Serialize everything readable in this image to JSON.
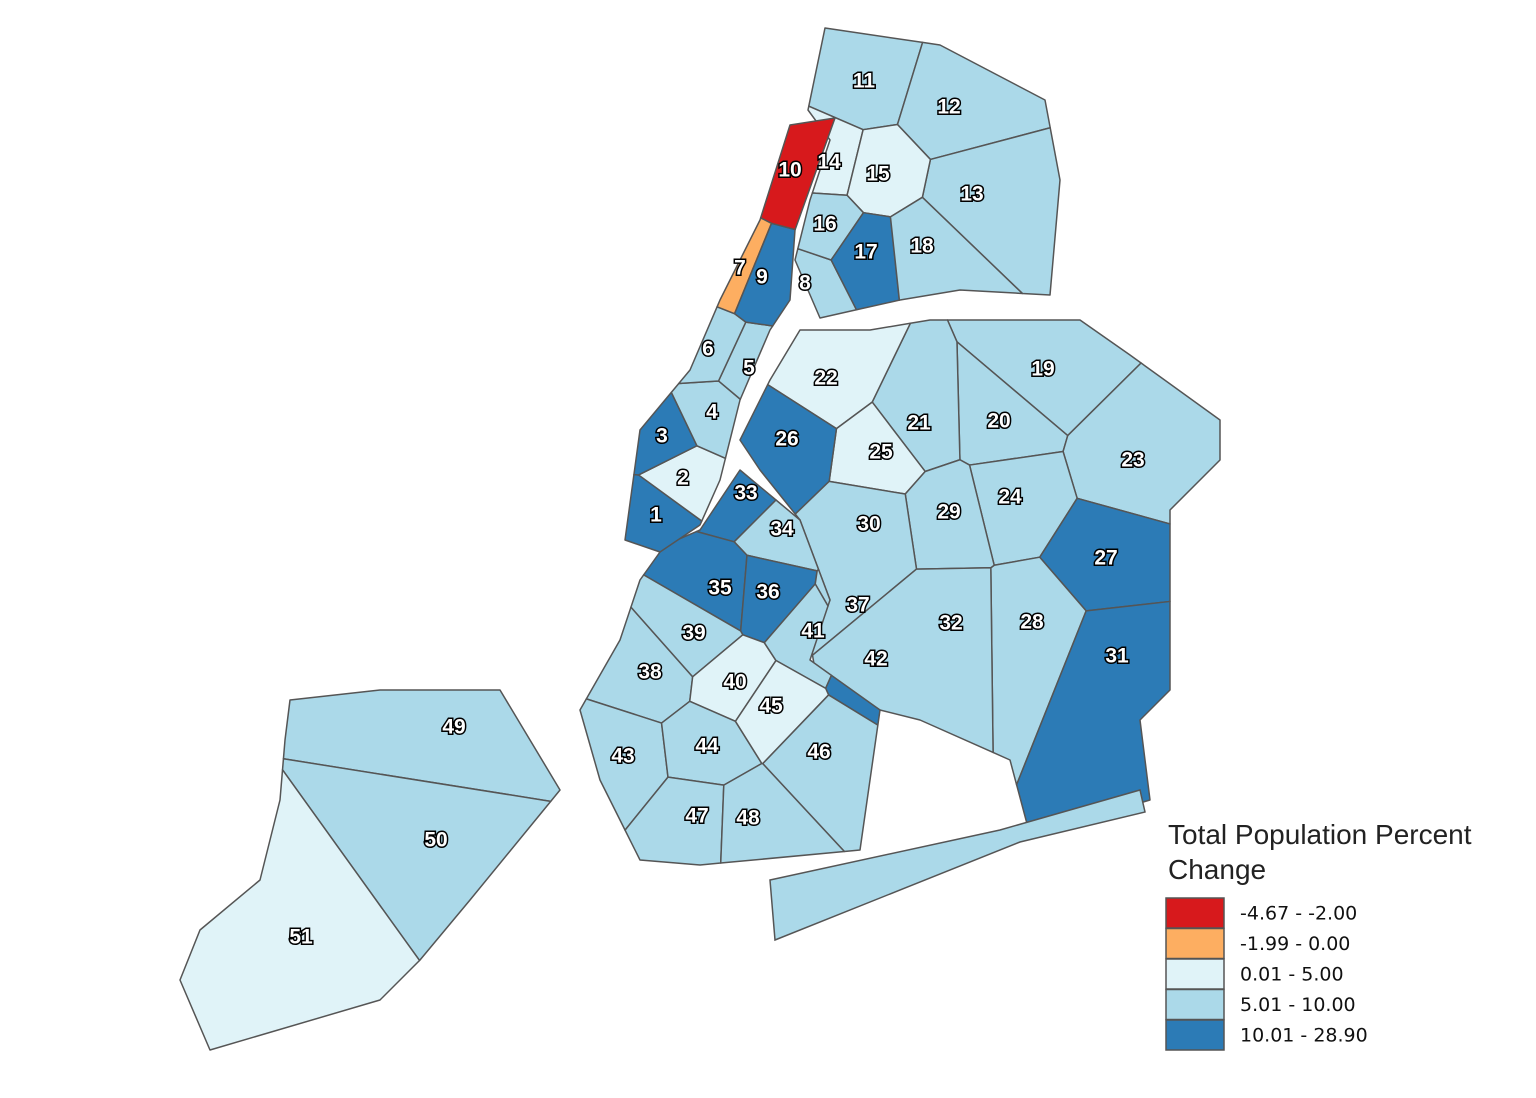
{
  "legend": {
    "title": "Total Population Percent Change",
    "items": [
      {
        "label": "-4.67 - -2.00",
        "color": "#d7191c"
      },
      {
        "label": "-1.99 - 0.00",
        "color": "#fdae61"
      },
      {
        "label": "0.01 - 5.00",
        "color": "#e0f3f8"
      },
      {
        "label": "5.01 - 10.00",
        "color": "#abd9e9"
      },
      {
        "label": "10.01 - 28.90",
        "color": "#2c7bb6"
      }
    ]
  },
  "districts": [
    {
      "label": "1",
      "color": "#2c7bb6"
    },
    {
      "label": "2",
      "color": "#e0f3f8"
    },
    {
      "label": "3",
      "color": "#2c7bb6"
    },
    {
      "label": "4",
      "color": "#abd9e9"
    },
    {
      "label": "5",
      "color": "#abd9e9"
    },
    {
      "label": "6",
      "color": "#abd9e9"
    },
    {
      "label": "7",
      "color": "#fdae61"
    },
    {
      "label": "8",
      "color": "#abd9e9"
    },
    {
      "label": "9",
      "color": "#2c7bb6"
    },
    {
      "label": "10",
      "color": "#d7191c"
    },
    {
      "label": "11",
      "color": "#abd9e9"
    },
    {
      "label": "12",
      "color": "#abd9e9"
    },
    {
      "label": "13",
      "color": "#abd9e9"
    },
    {
      "label": "14",
      "color": "#e0f3f8"
    },
    {
      "label": "15",
      "color": "#e0f3f8"
    },
    {
      "label": "16",
      "color": "#abd9e9"
    },
    {
      "label": "17",
      "color": "#2c7bb6"
    },
    {
      "label": "18",
      "color": "#abd9e9"
    },
    {
      "label": "19",
      "color": "#abd9e9"
    },
    {
      "label": "20",
      "color": "#abd9e9"
    },
    {
      "label": "21",
      "color": "#abd9e9"
    },
    {
      "label": "22",
      "color": "#e0f3f8"
    },
    {
      "label": "23",
      "color": "#abd9e9"
    },
    {
      "label": "24",
      "color": "#abd9e9"
    },
    {
      "label": "25",
      "color": "#e0f3f8"
    },
    {
      "label": "26",
      "color": "#2c7bb6"
    },
    {
      "label": "27",
      "color": "#2c7bb6"
    },
    {
      "label": "28",
      "color": "#abd9e9"
    },
    {
      "label": "29",
      "color": "#abd9e9"
    },
    {
      "label": "30",
      "color": "#abd9e9"
    },
    {
      "label": "31",
      "color": "#2c7bb6"
    },
    {
      "label": "32",
      "color": "#abd9e9"
    },
    {
      "label": "33",
      "color": "#2c7bb6"
    },
    {
      "label": "34",
      "color": "#abd9e9"
    },
    {
      "label": "35",
      "color": "#2c7bb6"
    },
    {
      "label": "36",
      "color": "#2c7bb6"
    },
    {
      "label": "37",
      "color": "#abd9e9"
    },
    {
      "label": "38",
      "color": "#abd9e9"
    },
    {
      "label": "39",
      "color": "#abd9e9"
    },
    {
      "label": "40",
      "color": "#e0f3f8"
    },
    {
      "label": "41",
      "color": "#abd9e9"
    },
    {
      "label": "42",
      "color": "#2c7bb6"
    },
    {
      "label": "43",
      "color": "#abd9e9"
    },
    {
      "label": "44",
      "color": "#abd9e9"
    },
    {
      "label": "45",
      "color": "#e0f3f8"
    },
    {
      "label": "46",
      "color": "#abd9e9"
    },
    {
      "label": "47",
      "color": "#abd9e9"
    },
    {
      "label": "48",
      "color": "#abd9e9"
    },
    {
      "label": "49",
      "color": "#abd9e9"
    },
    {
      "label": "50",
      "color": "#abd9e9"
    },
    {
      "label": "51",
      "color": "#e0f3f8"
    }
  ]
}
